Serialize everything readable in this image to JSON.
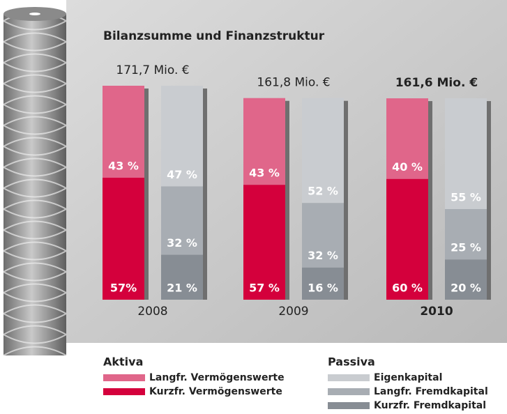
{
  "chart_data": {
    "type": "grouped-stacked-bar",
    "title": "Bilanzsumme und Finanzstruktur",
    "categories": [
      "2008",
      "2009",
      "2010"
    ],
    "totals": [
      171.7,
      161.8,
      161.6
    ],
    "total_labels": [
      "171,7 Mio. €",
      "161,8 Mio. €",
      "161,6 Mio. €"
    ],
    "stacks": [
      {
        "name": "Aktiva",
        "series": [
          {
            "name": "Langfr. Vermögenswerte",
            "color": "#e0668a",
            "values": [
              43,
              43,
              40
            ],
            "value_labels": [
              "43 %",
              "43 %",
              "40 %"
            ]
          },
          {
            "name": "Kurzfr. Vermögenswerte",
            "color": "#d4003c",
            "values": [
              57,
              57,
              60
            ],
            "value_labels": [
              "57%",
              "57 %",
              "60 %"
            ]
          }
        ]
      },
      {
        "name": "Passiva",
        "series": [
          {
            "name": "Eigenkapital",
            "color": "#c9ccd0",
            "values": [
              47,
              52,
              55
            ],
            "value_labels": [
              "47 %",
              "52 %",
              "55 %"
            ]
          },
          {
            "name": "Langfr. Fremdkapital",
            "color": "#a8adb3",
            "values": [
              32,
              32,
              25
            ],
            "value_labels": [
              "32 %",
              "32 %",
              "25 %"
            ]
          },
          {
            "name": "Kurzfr. Fremdkapital",
            "color": "#878d94",
            "values": [
              21,
              16,
              20
            ],
            "value_labels": [
              "21 %",
              "16 %",
              "20 %"
            ]
          }
        ]
      }
    ]
  }
}
